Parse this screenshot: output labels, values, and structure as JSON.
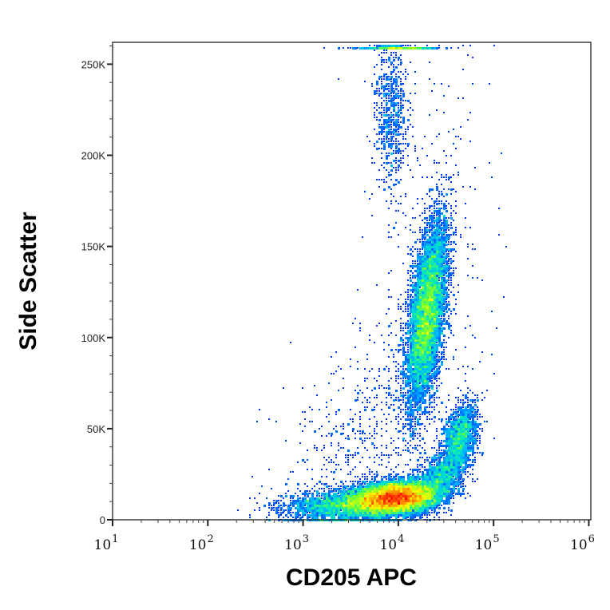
{
  "chart_data": {
    "type": "scatter",
    "subtype": "density-dot-plot",
    "xlabel": "CD205 APC",
    "ylabel": "Side Scatter",
    "xscale": "log",
    "xlim": [
      10,
      1050000
    ],
    "ylim": [
      0,
      262000
    ],
    "x_ticks": [
      {
        "value": 10,
        "base": "10",
        "exp": "1"
      },
      {
        "value": 100,
        "base": "10",
        "exp": "2"
      },
      {
        "value": 1000,
        "base": "10",
        "exp": "3"
      },
      {
        "value": 10000,
        "base": "10",
        "exp": "4"
      },
      {
        "value": 100000,
        "base": "10",
        "exp": "5"
      },
      {
        "value": 1000000,
        "base": "10",
        "exp": "6"
      }
    ],
    "y_ticks": [
      {
        "value": 0,
        "label": "0"
      },
      {
        "value": 50000,
        "label": "50K"
      },
      {
        "value": 100000,
        "label": "100K"
      },
      {
        "value": 150000,
        "label": "150K"
      },
      {
        "value": 200000,
        "label": "200K"
      },
      {
        "value": 250000,
        "label": "250K"
      }
    ],
    "colormap": [
      "#0000dd",
      "#0050ff",
      "#00b0ff",
      "#00e8c0",
      "#70ff30",
      "#ffff00",
      "#ff9000",
      "#ff0000"
    ],
    "populations": [
      {
        "name": "low-SSC main",
        "log10_x": 3.97,
        "y": 12000,
        "sd_log10_x": 0.22,
        "sd_y": 4500,
        "corr": 0.2,
        "events": 9000
      },
      {
        "name": "low-SSC tail",
        "log10_x": 3.45,
        "y": 8000,
        "sd_log10_x": 0.32,
        "sd_y": 4500,
        "corr": 0.2,
        "events": 2500
      },
      {
        "name": "high-SSC CD205+",
        "log10_x": 4.3,
        "y": 112000,
        "sd_log10_x": 0.11,
        "sd_y": 27000,
        "corr": 0.55,
        "events": 6500
      },
      {
        "name": "mid-SSC CD205 bright",
        "log10_x": 4.65,
        "y": 46000,
        "sd_log10_x": 0.09,
        "sd_y": 9000,
        "corr": 0.3,
        "events": 1300
      },
      {
        "name": "bridge",
        "log10_x": 4.45,
        "y": 24000,
        "sd_log10_x": 0.15,
        "sd_y": 8000,
        "corr": 0.5,
        "events": 1300
      },
      {
        "name": "top granular",
        "log10_x": 3.93,
        "y": 225000,
        "sd_log10_x": 0.09,
        "sd_y": 22000,
        "corr": 0.0,
        "events": 700
      },
      {
        "name": "saturated",
        "log10_x": 4.0,
        "y": 259000,
        "sd_log10_x": 0.2,
        "sd_y": 0,
        "corr": 0.0,
        "events": 350
      },
      {
        "name": "sparse diagonal",
        "log10_x": 3.6,
        "y": 45000,
        "sd_log10_x": 0.4,
        "sd_y": 32000,
        "corr": 0.5,
        "events": 600
      },
      {
        "name": "sparse high",
        "log10_x": 4.4,
        "y": 150000,
        "sd_log10_x": 0.35,
        "sd_y": 60000,
        "corr": 0.0,
        "events": 250
      }
    ]
  }
}
